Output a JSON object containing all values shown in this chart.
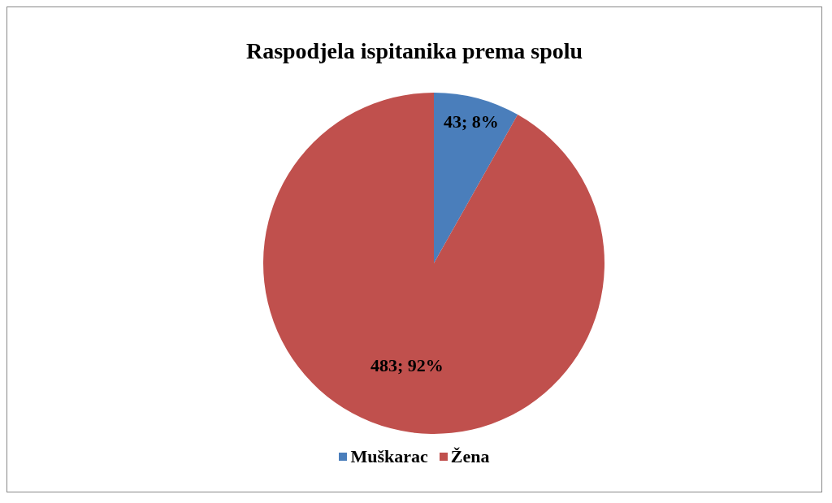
{
  "chart_data": {
    "type": "pie",
    "title": "Raspodjela ispitanika prema spolu",
    "categories": [
      "Muškarac",
      "Žena"
    ],
    "values": [
      43,
      483
    ],
    "value_labels": [
      "43; 8%",
      "483; 92%"
    ],
    "colors": [
      "#4a7ebb",
      "#c0504d"
    ],
    "legend": "bottom"
  }
}
